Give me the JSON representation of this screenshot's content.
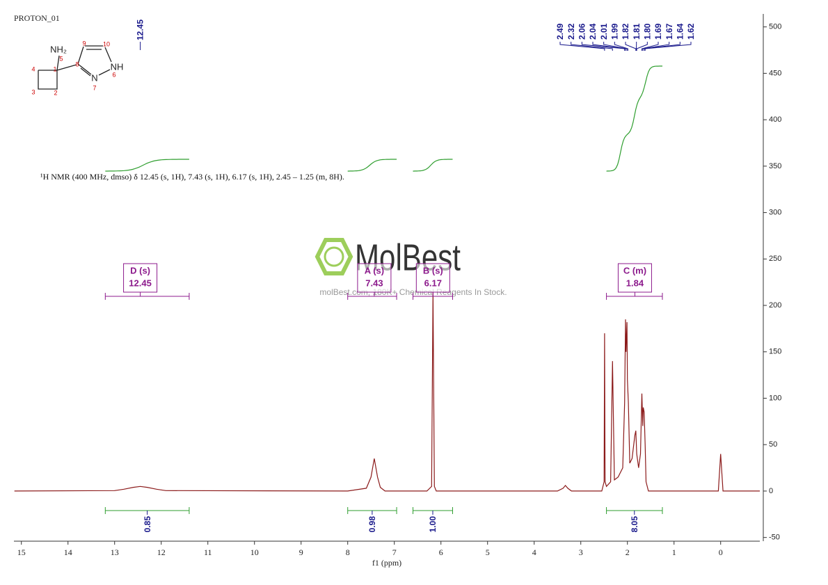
{
  "chart_data": {
    "type": "nmr",
    "title": "PROTON_01",
    "annotation": "¹H NMR (400 MHz, dmso) δ 12.45 (s, 1H), 7.43 (s, 1H), 6.17 (s, 1H), 2.45 – 1.25 (m, 8H).",
    "xlabel": "f1 (ppm)",
    "color": "#8b1a1a",
    "integral_color": "#2e9e2e",
    "peak_color": "#1a1a8c",
    "multiplet_color": "#8c1a8c",
    "x": [
      15.15,
      13.0,
      12.8,
      12.6,
      12.45,
      12.3,
      12.1,
      11.9,
      8.0,
      7.6,
      7.5,
      7.43,
      7.36,
      7.3,
      7.2,
      6.3,
      6.2,
      6.17,
      6.14,
      6.1,
      3.5,
      3.38,
      3.33,
      3.28,
      3.2,
      2.55,
      2.5,
      2.49,
      2.48,
      2.45,
      2.36,
      2.32,
      2.28,
      2.2,
      2.1,
      2.06,
      2.04,
      2.03,
      2.01,
      2.0,
      1.98,
      1.95,
      1.9,
      1.84,
      1.82,
      1.8,
      1.76,
      1.72,
      1.69,
      1.67,
      1.66,
      1.64,
      1.62,
      1.6,
      1.55,
      1.4,
      0.05,
      0,
      -0.05,
      -0.84
    ],
    "values": [
      0,
      0.5,
      2,
      4,
      5,
      4,
      2,
      0.5,
      0,
      3,
      15,
      35,
      15,
      4,
      0,
      0,
      5,
      214,
      5,
      0,
      0,
      3,
      6,
      3,
      0,
      0,
      10,
      170,
      10,
      5,
      10,
      140,
      12,
      15,
      25,
      95,
      185,
      150,
      182,
      120,
      95,
      30,
      35,
      60,
      65,
      40,
      25,
      40,
      105,
      70,
      90,
      85,
      50,
      10,
      0,
      0,
      0,
      40,
      0,
      0
    ],
    "xlim": [
      15.16,
      -0.84
    ],
    "ylim": [
      -54,
      514
    ],
    "xticks": [
      15,
      14,
      13,
      12,
      11,
      10,
      9,
      8,
      7,
      6,
      5,
      4,
      3,
      2,
      1,
      0
    ],
    "yticks": [
      -50,
      0,
      50,
      100,
      150,
      200,
      250,
      300,
      350,
      400,
      450,
      500
    ],
    "peak_labels": [
      12.45,
      2.49,
      2.32,
      2.06,
      2.04,
      2.01,
      1.99,
      1.82,
      1.81,
      {
        "value": 1.8,
        "label": "1.80"
      },
      1.69,
      1.67,
      1.64,
      1.62
    ],
    "multiplets": [
      {
        "name": "D (s)",
        "shift": 12.45,
        "range": [
          13.2,
          11.4
        ]
      },
      {
        "name": "A (s)",
        "shift": 7.43,
        "range": [
          8.0,
          6.95
        ]
      },
      {
        "name": "B (s)",
        "shift": 6.17,
        "range": [
          6.6,
          5.75
        ]
      },
      {
        "name": "C (m)",
        "shift": 1.84,
        "range": [
          2.45,
          1.25
        ]
      }
    ],
    "integrals": [
      {
        "value": 0.85,
        "range": [
          13.2,
          11.4
        ]
      },
      {
        "value": 0.98,
        "range": [
          8.0,
          6.95
        ]
      },
      {
        "value": {
          "value": 1,
          "label": "1.00"
        },
        "range": [
          6.6,
          5.75
        ]
      },
      {
        "value": 8.05,
        "range": [
          2.45,
          1.25
        ]
      }
    ],
    "structure": {
      "labels": [
        "NH₂",
        "5",
        "4",
        "1",
        "3",
        "2",
        "8",
        "9",
        "10",
        "NH",
        "6",
        "N",
        "7"
      ]
    },
    "watermark": {
      "logo": "MolBest",
      "text": "molBest.com, 180K+ Chemical Reagents In Stock."
    }
  }
}
